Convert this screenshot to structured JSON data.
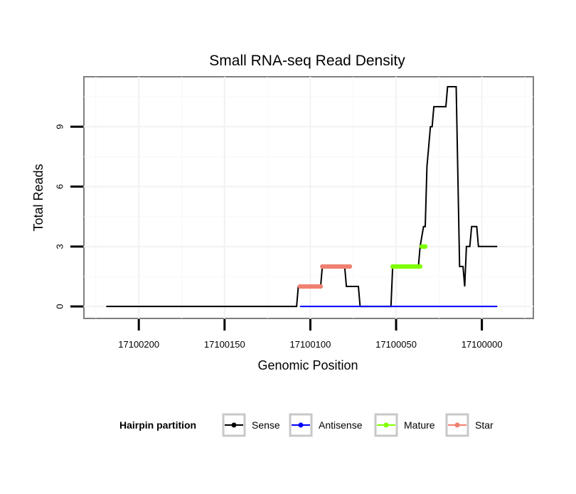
{
  "chart_data": {
    "type": "line",
    "title": "Small RNA-seq Read Density",
    "xlabel": "Genomic Position",
    "ylabel": "Total Reads",
    "xlim": [
      17100232,
      17099970
    ],
    "ylim": [
      -0.6,
      11.5
    ],
    "x_reversed": true,
    "x_ticks": [
      17100200,
      17100150,
      17100100,
      17100050,
      17100000
    ],
    "x_tick_labels": [
      "17100200",
      "17100150",
      "17100100",
      "17100050",
      "17100000"
    ],
    "y_ticks": [
      0,
      3,
      6,
      9
    ],
    "y_tick_labels": [
      "0",
      "3",
      "6",
      "9"
    ],
    "grid": true,
    "legend": {
      "title": "Hairpin partition",
      "position": "bottom",
      "entries": [
        {
          "name": "Sense",
          "color": "#000000"
        },
        {
          "name": "Antisense",
          "color": "#0000ff"
        },
        {
          "name": "Mature",
          "color": "#7fff00"
        },
        {
          "name": "Star",
          "color": "#f08070"
        }
      ]
    },
    "series": [
      {
        "name": "Sense",
        "color": "#000000",
        "points": [
          [
            17100219,
            0
          ],
          [
            17100108,
            0
          ],
          [
            17100107,
            1
          ],
          [
            17100094,
            1
          ],
          [
            17100093,
            2
          ],
          [
            17100080,
            2
          ],
          [
            17100079,
            1
          ],
          [
            17100072,
            1
          ],
          [
            17100071,
            0
          ],
          [
            17100053,
            0
          ],
          [
            17100052,
            2
          ],
          [
            17100037,
            2
          ],
          [
            17100036,
            3
          ],
          [
            17100034,
            4
          ],
          [
            17100033,
            4
          ],
          [
            17100032,
            7
          ],
          [
            17100030,
            9
          ],
          [
            17100029,
            9
          ],
          [
            17100028,
            10
          ],
          [
            17100021,
            10
          ],
          [
            17100020,
            11
          ],
          [
            17100015,
            11
          ],
          [
            17100013,
            2
          ],
          [
            17100011,
            2
          ],
          [
            17100010,
            1
          ],
          [
            17100009,
            3
          ],
          [
            17100007,
            3
          ],
          [
            17100006,
            4
          ],
          [
            17100003,
            4
          ],
          [
            17100002,
            3
          ],
          [
            17099991,
            3
          ]
        ]
      },
      {
        "name": "Antisense",
        "color": "#0000ff",
        "points": [
          [
            17100106,
            0
          ],
          [
            17099991,
            0
          ]
        ]
      },
      {
        "name": "Mature",
        "color": "#7fff00",
        "segments": [
          {
            "x_start": 17100052,
            "x_end": 17100036,
            "y": 2
          },
          {
            "x_start": 17100035,
            "x_end": 17100033,
            "y": 3
          }
        ]
      },
      {
        "name": "Star",
        "color": "#f08070",
        "segments": [
          {
            "x_start": 17100106,
            "x_end": 17100094,
            "y": 1
          },
          {
            "x_start": 17100093,
            "x_end": 17100077,
            "y": 2
          }
        ]
      }
    ]
  }
}
